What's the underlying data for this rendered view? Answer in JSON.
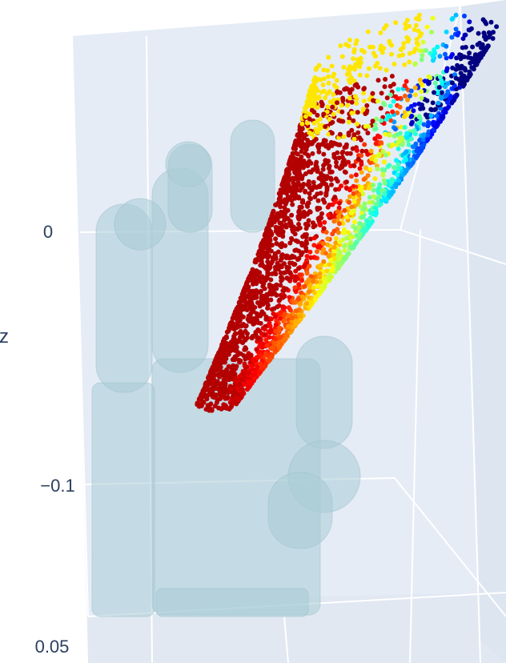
{
  "chart_data": {
    "type": "scatter3d",
    "title": "",
    "axes": {
      "z": {
        "label": "z",
        "tick_labels": [
          "0",
          "−0.1"
        ],
        "tick_values": [
          0,
          -0.1
        ],
        "range_hint": [
          -0.2,
          0.05
        ]
      },
      "y": {
        "tick_labels": [
          "0.05"
        ],
        "tick_values": [
          0.05
        ]
      }
    },
    "scene_background": "#e5ecf6",
    "gridline_color": "#ffffff",
    "objects": [
      {
        "name": "robot-hand-mesh",
        "kind": "mesh",
        "color": "#a9ccd6",
        "opacity": 0.55
      },
      {
        "name": "object-point-cloud",
        "kind": "points",
        "colorscale": "jet",
        "approx_point_count": 3000
      }
    ]
  }
}
